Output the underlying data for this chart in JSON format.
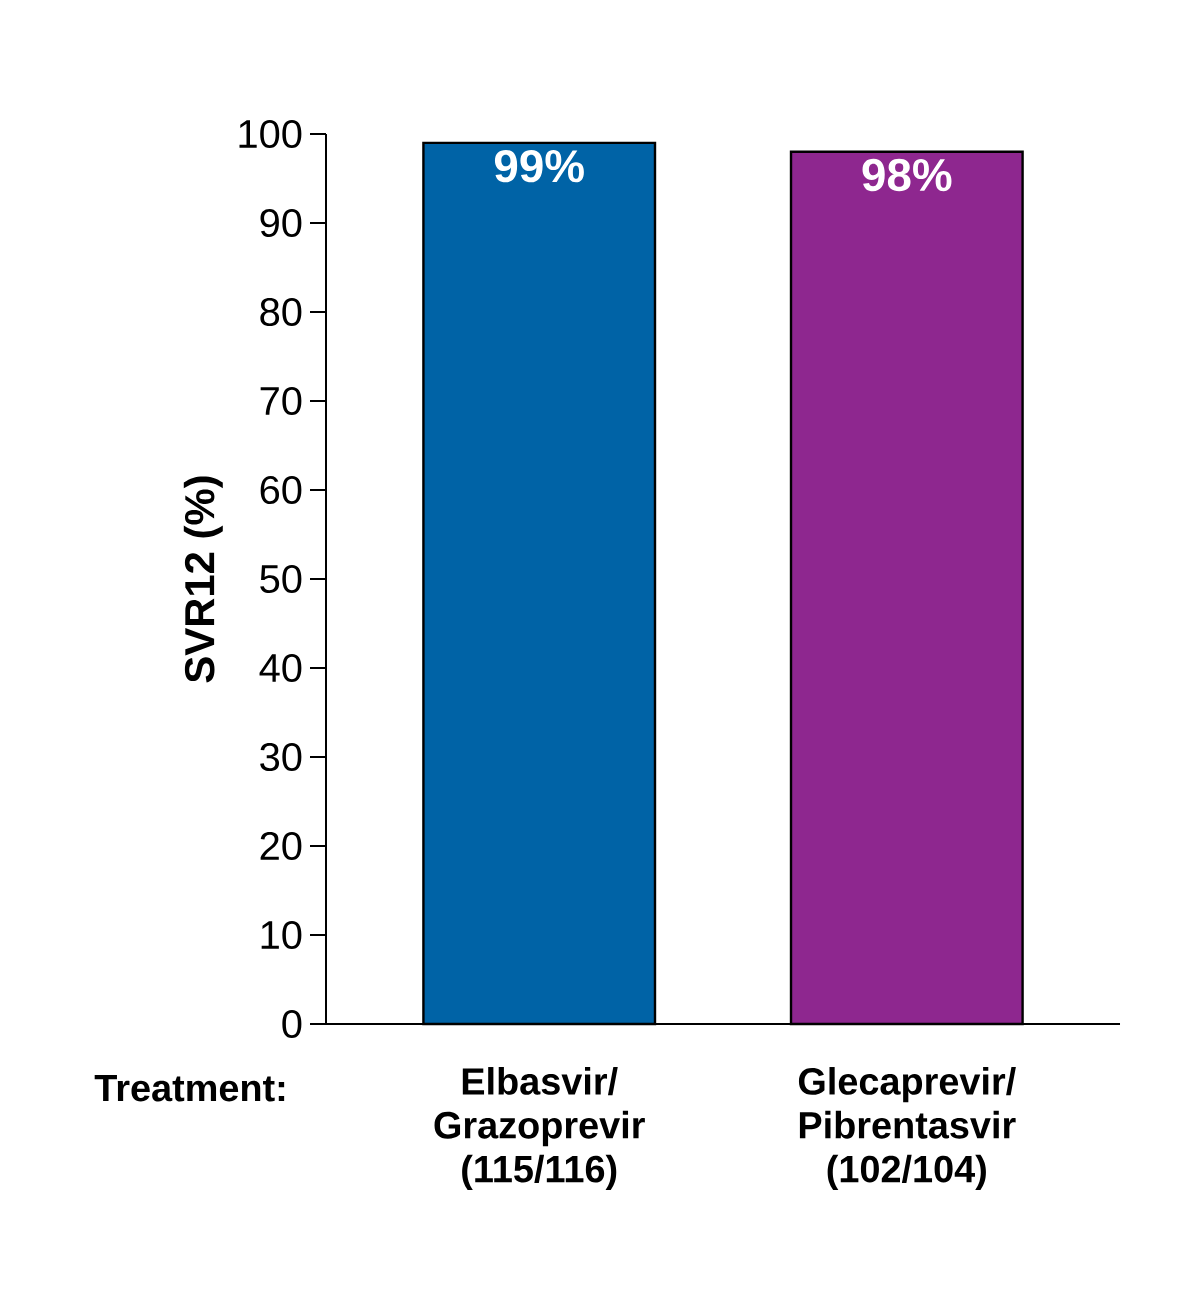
{
  "chart_data": {
    "type": "bar",
    "categories": [
      "Elbasvir/ Grazoprevir (115/116)",
      "Glecaprevir/ Pibrentasvir (102/104)"
    ],
    "values": [
      99,
      98
    ],
    "colors": [
      "#0063a6",
      "#8e278f"
    ],
    "value_labels": [
      "99%",
      "98%"
    ],
    "xlabel": "Treatment:",
    "ylabel": "SVR12 (%)",
    "ylim": [
      0,
      100
    ],
    "yticks": [
      0,
      10,
      20,
      30,
      40,
      50,
      60,
      70,
      80,
      90,
      100
    ]
  }
}
